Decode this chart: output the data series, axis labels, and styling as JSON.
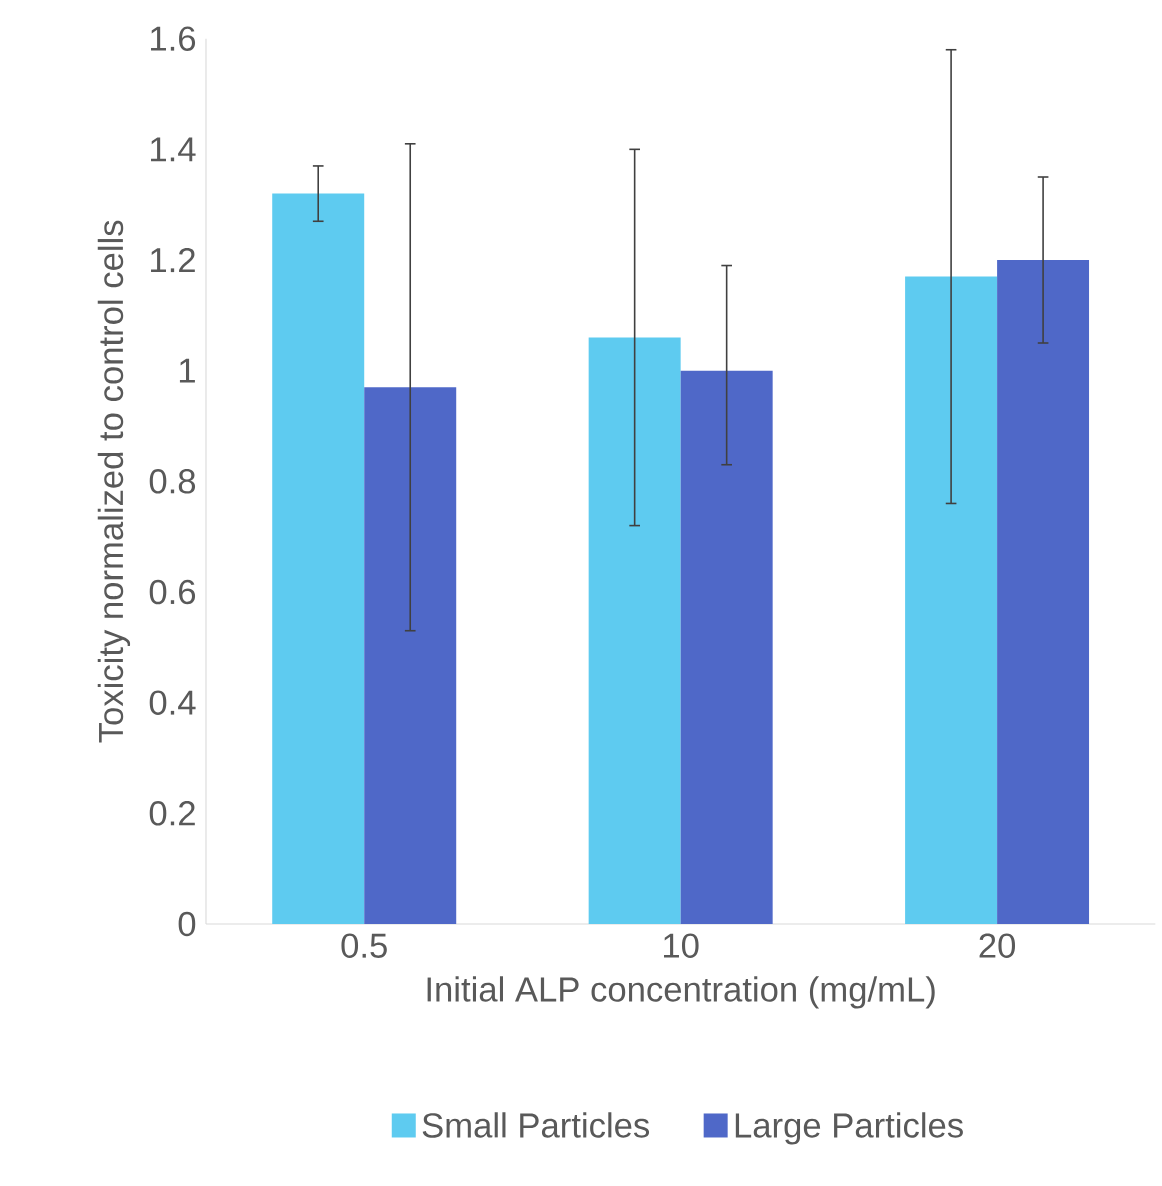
{
  "chart_data": {
    "type": "bar",
    "xlabel": "Initial ALP concentration (mg/mL)",
    "ylabel": "Toxicity normalized to control cells",
    "categories": [
      "0.5",
      "10",
      "20"
    ],
    "series": [
      {
        "name": "Small Particles",
        "color": "#5ecbf0",
        "values": [
          1.32,
          1.06,
          1.17
        ],
        "errors": [
          [
            1.27,
            1.37
          ],
          [
            0.72,
            1.4
          ],
          [
            0.76,
            1.58
          ]
        ]
      },
      {
        "name": "Large Particles",
        "color": "#4f68c8",
        "values": [
          0.97,
          1.0,
          1.2
        ],
        "errors": [
          [
            0.53,
            1.41
          ],
          [
            0.83,
            1.19
          ],
          [
            1.05,
            1.35
          ]
        ]
      }
    ],
    "ylim": [
      0,
      1.6
    ],
    "yticks": [
      0,
      0.2,
      0.4,
      0.6,
      0.8,
      1,
      1.2,
      1.4,
      1.6
    ],
    "grid": false,
    "legend": "bottom"
  }
}
